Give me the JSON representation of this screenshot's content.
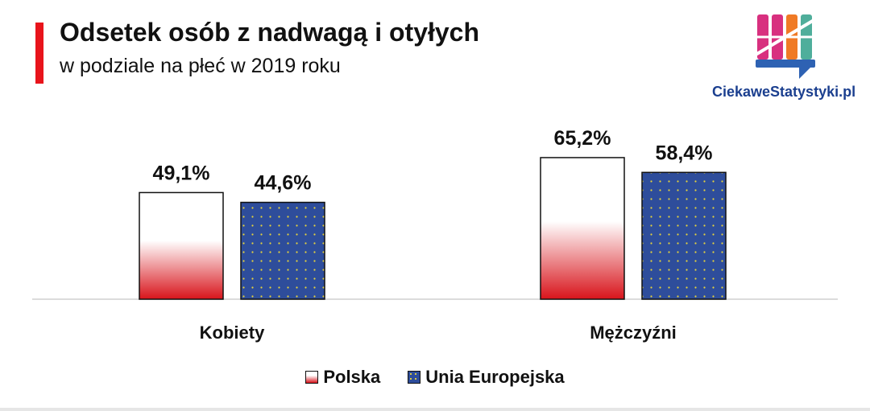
{
  "header": {
    "title": "Odsetek osób z nadwagą i otyłych",
    "subtitle": "w podziale na płeć w 2019 roku"
  },
  "brand": {
    "name": "CiekaweStatystyki.pl",
    "logo_colors": [
      "#d8307f",
      "#f07a25",
      "#2e62b3",
      "#4fae9b"
    ],
    "text_color": "#1b3f8f"
  },
  "colors": {
    "accent": "#e8141b",
    "polska": "#d8141b",
    "eu": "#2e4d9b",
    "eu_dots": "#e8d43a"
  },
  "chart_data": {
    "type": "bar",
    "categories": [
      "Kobiety",
      "Mężczyźni"
    ],
    "series": [
      {
        "name": "Polska",
        "values": [
          49.1,
          65.2
        ],
        "labels": [
          "49,1%",
          "65,2%"
        ]
      },
      {
        "name": "Unia Europejska",
        "values": [
          44.6,
          58.4
        ],
        "labels": [
          "44,6%",
          "58,4%"
        ]
      }
    ],
    "ylim": [
      0,
      70
    ],
    "grid": false,
    "legend_position": "bottom"
  }
}
